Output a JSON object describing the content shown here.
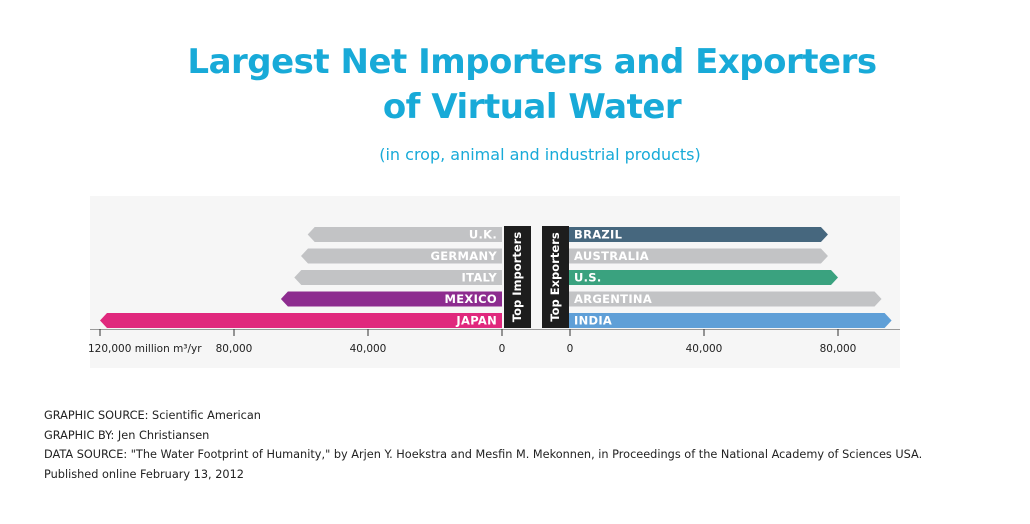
{
  "title_line1": "Largest Net Importers and Exporters",
  "title_line2": "of Virtual Water",
  "subtitle": "(in crop, animal and industrial products)",
  "chart_data": {
    "type": "bar",
    "orientation": "horizontal-diverging",
    "unit": "million m³/yr",
    "importers": {
      "group_label": "Top Importers",
      "categories": [
        "U.K.",
        "GERMANY",
        "ITALY",
        "MEXICO",
        "JAPAN"
      ],
      "values": [
        58000,
        60000,
        62000,
        66000,
        120000
      ],
      "colors": [
        "#c2c3c5",
        "#c2c3c5",
        "#c2c3c5",
        "#8d2c8f",
        "#e0287d"
      ],
      "xlim": [
        120000,
        0
      ],
      "ticks": [
        120000,
        80000,
        40000,
        0
      ],
      "tick_labels": [
        "120,000 million m³/yr",
        "80,000",
        "40,000",
        "0"
      ]
    },
    "exporters": {
      "group_label": "Top Exporters",
      "categories": [
        "BRAZIL",
        "AUSTRALIA",
        "U.S.",
        "ARGENTINA",
        "INDIA"
      ],
      "values": [
        77000,
        77000,
        80000,
        93000,
        96000
      ],
      "colors": [
        "#46677e",
        "#c2c3c5",
        "#3aa27f",
        "#c2c3c5",
        "#5f9fd7"
      ],
      "xlim": [
        0,
        100000
      ],
      "ticks": [
        0,
        40000,
        80000
      ],
      "tick_labels": [
        "0",
        "40,000",
        "80,000"
      ]
    }
  },
  "credits": {
    "source": "GRAPHIC SOURCE: Scientific American",
    "by": "GRAPHIC BY: Jen Christiansen",
    "data": "DATA SOURCE: \"The Water Footprint of Humanity,\" by Arjen Y. Hoekstra and Mesfin M. Mekonnen, in Proceedings of the National Academy of Sciences USA.",
    "published": "Published online February 13, 2012"
  }
}
